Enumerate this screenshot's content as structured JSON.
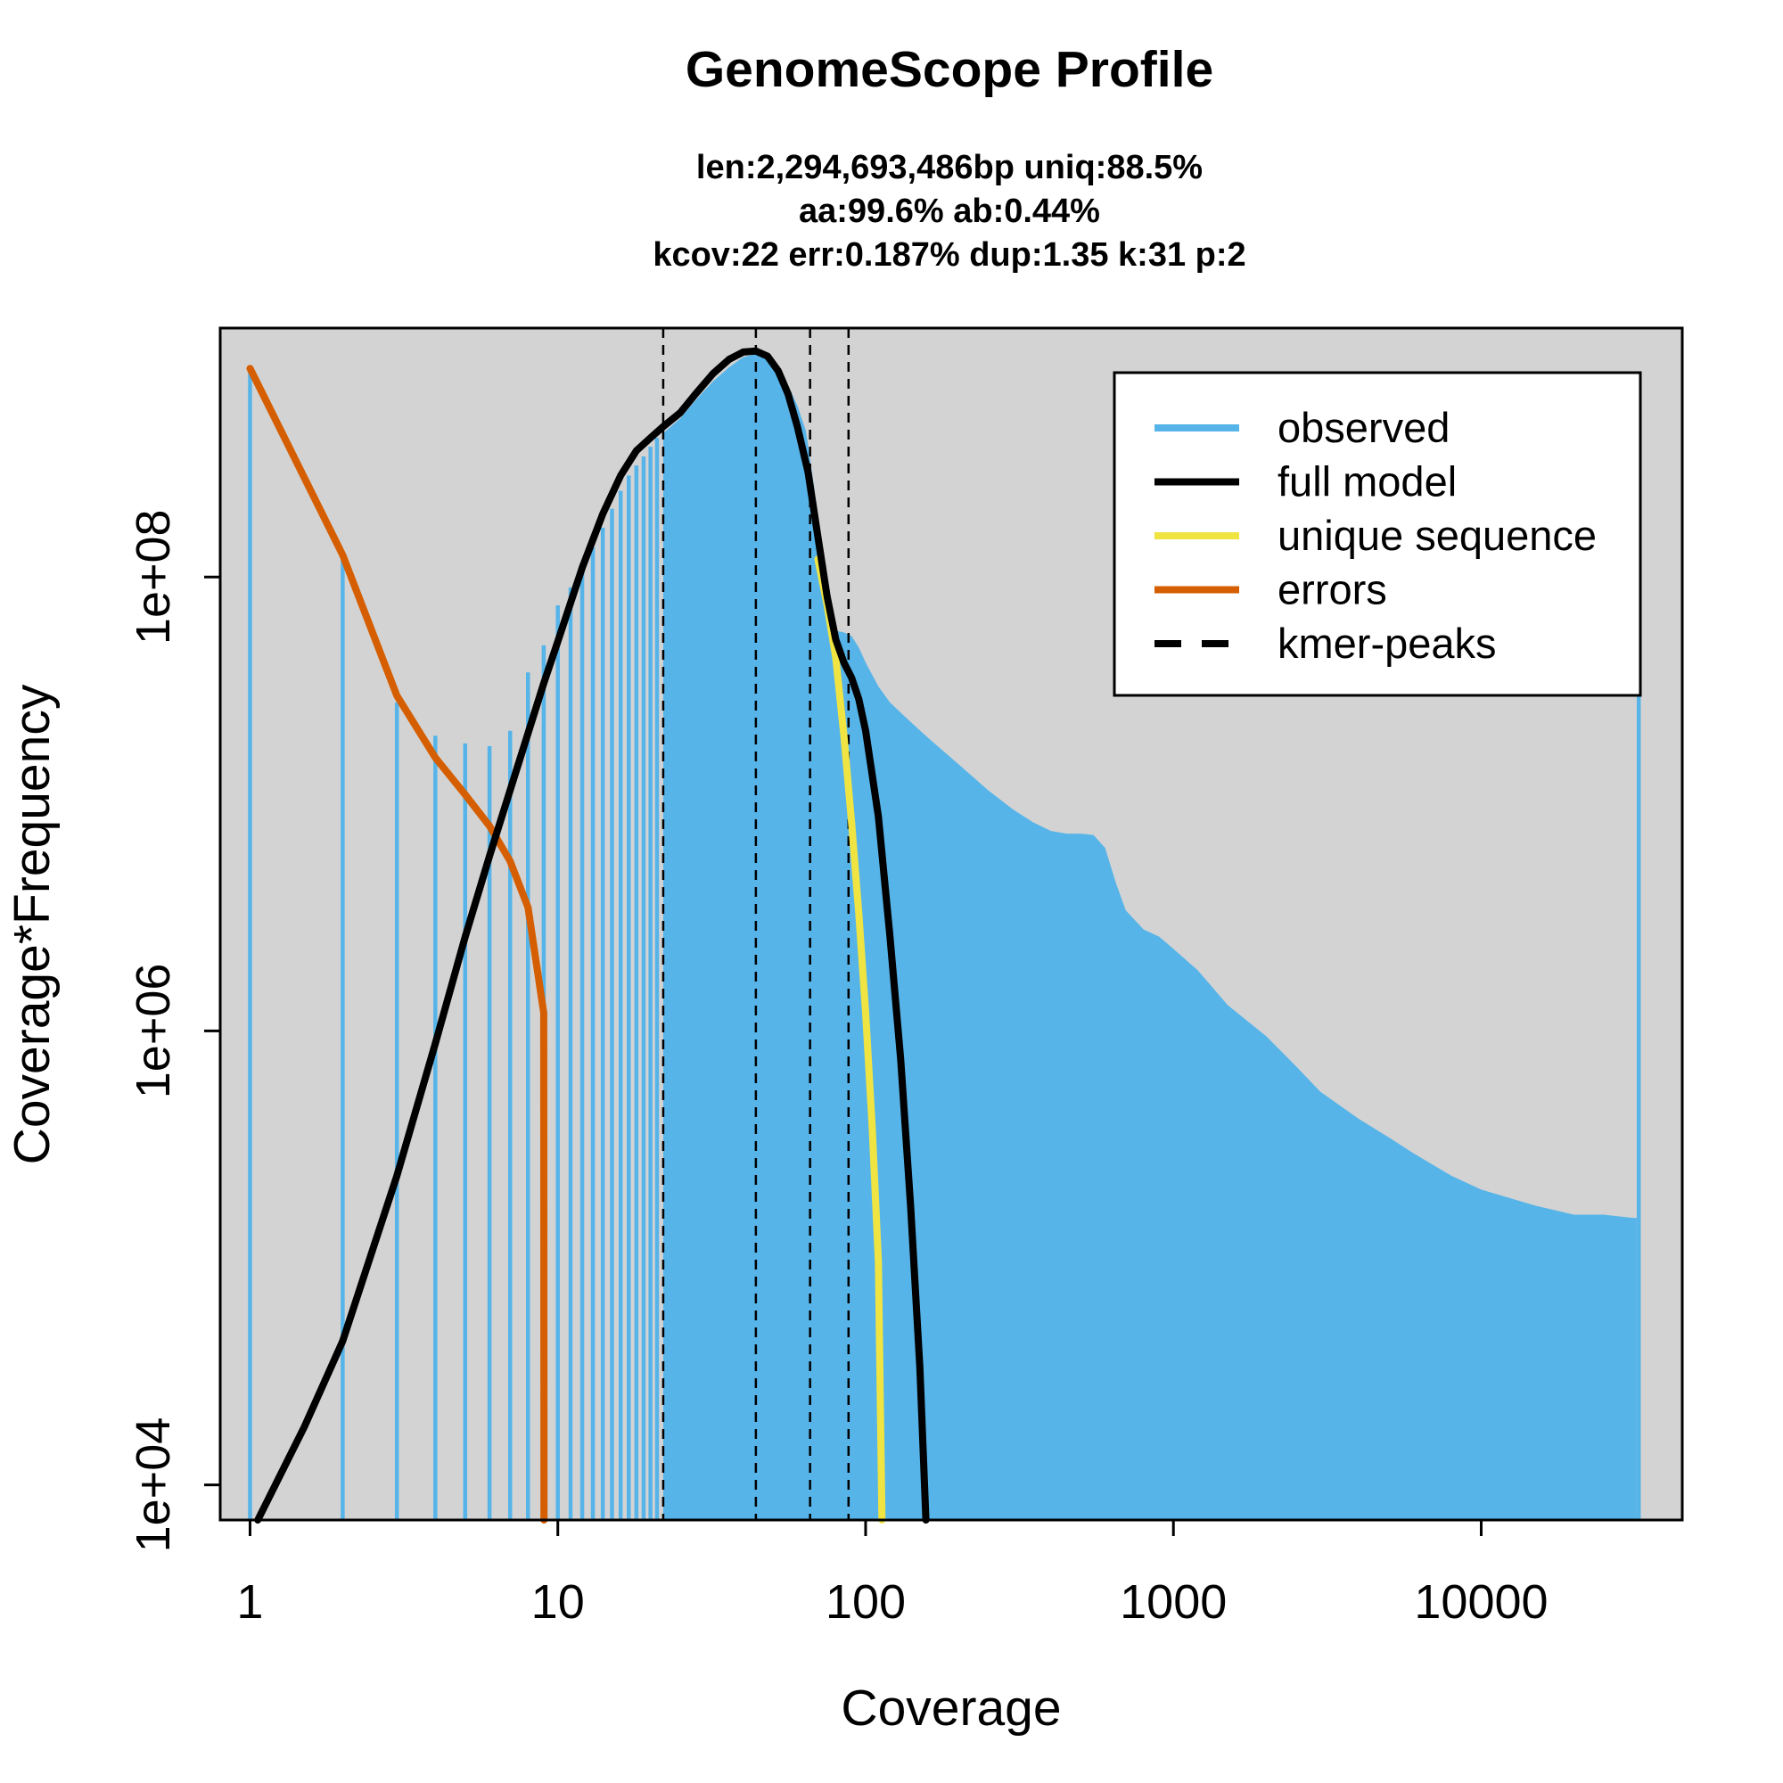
{
  "chart_data": {
    "type": "bar",
    "title": "GenomeScope Profile",
    "subtitle_lines": [
      "len:2,294,693,486bp uniq:88.5%",
      "aa:99.6% ab:0.44%",
      "kcov:22 err:0.187%  dup:1.35  k:31 p:2"
    ],
    "xlabel": "Coverage",
    "ylabel": "Coverage*Frequency",
    "x_scale": "log",
    "y_scale": "log",
    "xlim": [
      0.8,
      45000
    ],
    "ylim": [
      7000,
      1250000000.0
    ],
    "x_ticks": [
      1,
      10,
      100,
      1000,
      10000
    ],
    "x_tick_labels": [
      "1",
      "10",
      "100",
      "1000",
      "10000"
    ],
    "y_ticks": [
      10000,
      1000000,
      100000000
    ],
    "y_tick_labels": [
      "1e+04",
      "1e+06",
      "1e+08"
    ],
    "grid": false,
    "background_color": "#d3d3d3",
    "legend": {
      "position": "top-right",
      "entries": [
        {
          "label": "observed",
          "color": "#56b4e9",
          "style": "solid"
        },
        {
          "label": "full model",
          "color": "#000000",
          "style": "solid"
        },
        {
          "label": "unique sequence",
          "color": "#f0e442",
          "style": "solid"
        },
        {
          "label": "errors",
          "color": "#d55e00",
          "style": "solid"
        },
        {
          "label": "kmer-peaks",
          "color": "#000000",
          "style": "dashed"
        }
      ]
    },
    "kmer_peaks": [
      22,
      44,
      66,
      88
    ],
    "observed_discrete": [
      [
        1,
        800000000.0
      ],
      [
        2,
        120000000.0
      ],
      [
        3,
        28000000.0
      ],
      [
        4,
        20000000.0
      ],
      [
        5,
        18500000.0
      ],
      [
        6,
        18000000.0
      ],
      [
        7,
        21000000.0
      ],
      [
        8,
        38000000.0
      ],
      [
        9,
        50000000.0
      ],
      [
        10,
        75000000.0
      ],
      [
        11,
        90000000.0
      ],
      [
        12,
        110000000.0
      ],
      [
        13,
        135000000.0
      ],
      [
        14,
        165000000.0
      ],
      [
        15,
        200000000.0
      ],
      [
        16,
        240000000.0
      ],
      [
        17,
        280000000.0
      ],
      [
        18,
        310000000.0
      ],
      [
        19,
        340000000.0
      ],
      [
        20,
        375000000.0
      ],
      [
        21,
        410000000.0
      ]
    ],
    "observed_continuous": [
      [
        22,
        430000000.0
      ],
      [
        25,
        500000000.0
      ],
      [
        28,
        600000000.0
      ],
      [
        32,
        730000000.0
      ],
      [
        36,
        840000000.0
      ],
      [
        40,
        930000000.0
      ],
      [
        44,
        960000000.0
      ],
      [
        48,
        920000000.0
      ],
      [
        52,
        830000000.0
      ],
      [
        56,
        700000000.0
      ],
      [
        60,
        570000000.0
      ],
      [
        64,
        440000000.0
      ],
      [
        68,
        250000000.0
      ],
      [
        72,
        120000000.0
      ],
      [
        76,
        70000000.0
      ],
      [
        80,
        58000000.0
      ],
      [
        85,
        57000000.0
      ],
      [
        90,
        55000000.0
      ],
      [
        95,
        49000000.0
      ],
      [
        100,
        42000000.0
      ],
      [
        110,
        33000000.0
      ],
      [
        120,
        28000000.0
      ],
      [
        140,
        23000000.0
      ],
      [
        160,
        19500000.0
      ],
      [
        200,
        15000000.0
      ],
      [
        250,
        11500000.0
      ],
      [
        300,
        9500000.0
      ],
      [
        350,
        8300000.0
      ],
      [
        400,
        7600000.0
      ],
      [
        450,
        7400000.0
      ],
      [
        500,
        7400000.0
      ],
      [
        550,
        7300000.0
      ],
      [
        600,
        6400000.0
      ],
      [
        650,
        4500000.0
      ],
      [
        700,
        3400000.0
      ],
      [
        800,
        2800000.0
      ],
      [
        900,
        2600000.0
      ],
      [
        1000,
        2300000.0
      ],
      [
        1200,
        1850000.0
      ],
      [
        1500,
        1300000.0
      ],
      [
        2000,
        950000.0
      ],
      [
        2500,
        700000.0
      ],
      [
        3000,
        540000.0
      ],
      [
        4000,
        410000.0
      ],
      [
        5000,
        340000.0
      ],
      [
        6000,
        290000.0
      ],
      [
        8000,
        230000.0
      ],
      [
        10000,
        200000.0
      ],
      [
        15000,
        170000.0
      ],
      [
        20000,
        155000.0
      ],
      [
        25000,
        155000.0
      ],
      [
        31000,
        150000.0
      ],
      [
        32000,
        150000.0
      ]
    ],
    "observed_last": [
      32500,
      120000000.0
    ],
    "full_model": [
      [
        1.06,
        7000.0
      ],
      [
        1.5,
        18000.0
      ],
      [
        2,
        43000.0
      ],
      [
        3,
        230000.0
      ],
      [
        4,
        880000.0
      ],
      [
        5,
        2600000.0
      ],
      [
        6,
        5900000.0
      ],
      [
        7,
        11500000.0
      ],
      [
        8,
        20500000.0
      ],
      [
        9,
        34000000.0
      ],
      [
        10,
        52000000.0
      ],
      [
        12,
        110000000.0
      ],
      [
        14,
        190000000.0
      ],
      [
        16,
        280000000.0
      ],
      [
        18,
        360000000.0
      ],
      [
        20,
        410000000.0
      ],
      [
        22,
        460000000.0
      ],
      [
        25,
        530000000.0
      ],
      [
        28,
        640000000.0
      ],
      [
        32,
        790000000.0
      ],
      [
        36,
        910000000.0
      ],
      [
        40,
        980000000.0
      ],
      [
        44,
        990000000.0
      ],
      [
        48,
        940000000.0
      ],
      [
        52,
        810000000.0
      ],
      [
        56,
        640000000.0
      ],
      [
        60,
        460000000.0
      ],
      [
        65,
        290000000.0
      ],
      [
        70,
        150000000.0
      ],
      [
        75,
        82000000.0
      ],
      [
        80,
        53000000.0
      ],
      [
        85,
        42000000.0
      ],
      [
        90,
        36000000.0
      ],
      [
        95,
        29000000.0
      ],
      [
        100,
        21000000.0
      ],
      [
        110,
        8800000.0
      ],
      [
        120,
        2600000.0
      ],
      [
        130,
        750000.0
      ],
      [
        140,
        170000.0
      ],
      [
        150,
        33000.0
      ],
      [
        157,
        7000.0
      ]
    ],
    "unique_sequence": [
      [
        70,
        120000000.0
      ],
      [
        75,
        75000000.0
      ],
      [
        80,
        44000000.0
      ],
      [
        85,
        20000000.0
      ],
      [
        90,
        8300000.0
      ],
      [
        95,
        3300000.0
      ],
      [
        100,
        1200000.0
      ],
      [
        105,
        380000.0
      ],
      [
        110,
        96000.0
      ],
      [
        113,
        7000.0
      ]
    ],
    "errors": [
      [
        1,
        830000000.0
      ],
      [
        2,
        125000000.0
      ],
      [
        3,
        30000000.0
      ],
      [
        4,
        16000000.0
      ],
      [
        5,
        11000000.0
      ],
      [
        6,
        8000000.0
      ],
      [
        7,
        5600000.0
      ],
      [
        8,
        3500000.0
      ],
      [
        9,
        1200000.0
      ],
      [
        9.02,
        7000.0
      ]
    ]
  }
}
